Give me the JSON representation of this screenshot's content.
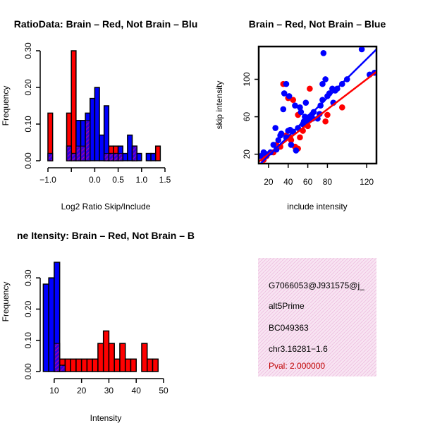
{
  "chart_data": [
    {
      "type": "bar",
      "subtype": "overlaid-histogram",
      "title": "RatioData: Brain – Red, Not Brain – Blu",
      "xlabel": "Log2 Ratio Skip/Include",
      "ylabel": "Frequency",
      "xlim": [
        -1.0,
        1.5
      ],
      "ylim": [
        0,
        0.3
      ],
      "xticks": [
        -1.0,
        -0.5,
        0.0,
        0.5,
        1.0,
        1.5
      ],
      "xtick_labels": [
        "−1.0",
        "",
        "0.0",
        "0.5",
        "1.0",
        "1.5"
      ],
      "yticks": [
        0,
        0.1,
        0.2,
        0.3
      ],
      "ytick_labels": [
        "0.00",
        "0.10",
        "0.20",
        "0.30"
      ],
      "bin_width": 0.1,
      "series": [
        {
          "name": "Brain",
          "color": "#ff0000",
          "bins": [
            [
              -1.0,
              0.13
            ],
            [
              -0.6,
              0.13
            ],
            [
              -0.5,
              0.3
            ],
            [
              -0.4,
              0.04
            ],
            [
              -0.3,
              0.04
            ],
            [
              -0.2,
              0.11
            ],
            [
              0.2,
              0.02
            ],
            [
              0.3,
              0.04
            ],
            [
              0.4,
              0.04
            ],
            [
              0.5,
              0.02
            ],
            [
              0.8,
              0.04
            ],
            [
              1.3,
              0.04
            ]
          ]
        },
        {
          "name": "Not Brain",
          "color": "#0000ff",
          "bins": [
            [
              -1.0,
              0.02
            ],
            [
              -0.6,
              0.04
            ],
            [
              -0.5,
              0.02
            ],
            [
              -0.4,
              0.11
            ],
            [
              -0.3,
              0.11
            ],
            [
              -0.2,
              0.13
            ],
            [
              -0.1,
              0.17
            ],
            [
              0.0,
              0.2
            ],
            [
              0.1,
              0.07
            ],
            [
              0.2,
              0.15
            ],
            [
              0.3,
              0.02
            ],
            [
              0.4,
              0.02
            ],
            [
              0.5,
              0.04
            ],
            [
              0.6,
              0.02
            ],
            [
              0.7,
              0.07
            ],
            [
              0.8,
              0.04
            ],
            [
              0.9,
              0.02
            ],
            [
              1.1,
              0.02
            ],
            [
              1.2,
              0.02
            ]
          ]
        }
      ]
    },
    {
      "type": "scatter",
      "title": "Brain – Red, Not Brain – Blue",
      "xlabel": "include intensity",
      "ylabel": "skip intensity",
      "xlim": [
        10,
        130
      ],
      "ylim": [
        10,
        135
      ],
      "xticks": [
        20,
        40,
        60,
        80,
        120
      ],
      "yticks": [
        20,
        60,
        100
      ],
      "series": [
        {
          "name": "Brain",
          "color": "#ff0000",
          "points": [
            [
              15,
              14
            ],
            [
              18,
              18
            ],
            [
              25,
              22
            ],
            [
              28,
              30
            ],
            [
              32,
              28
            ],
            [
              35,
              95
            ],
            [
              38,
              40
            ],
            [
              40,
              80
            ],
            [
              42,
              38
            ],
            [
              43,
              35
            ],
            [
              45,
              78
            ],
            [
              47,
              28
            ],
            [
              50,
              62
            ],
            [
              50,
              26
            ],
            [
              52,
              38
            ],
            [
              55,
              45
            ],
            [
              60,
              50
            ],
            [
              62,
              90
            ],
            [
              78,
              55
            ],
            [
              80,
              62
            ],
            [
              95,
              70
            ]
          ],
          "fit": {
            "x0": 10,
            "y0": 12,
            "x1": 130,
            "y1": 108
          }
        },
        {
          "name": "Not Brain",
          "color": "#0000ff",
          "points": [
            [
              12,
              18
            ],
            [
              15,
              22
            ],
            [
              18,
              20
            ],
            [
              22,
              22
            ],
            [
              25,
              30
            ],
            [
              27,
              48
            ],
            [
              28,
              25
            ],
            [
              30,
              35
            ],
            [
              32,
              40
            ],
            [
              33,
              42
            ],
            [
              35,
              68
            ],
            [
              36,
              85
            ],
            [
              38,
              38
            ],
            [
              38,
              95
            ],
            [
              40,
              45
            ],
            [
              41,
              82
            ],
            [
              42,
              46
            ],
            [
              43,
              30
            ],
            [
              45,
              44
            ],
            [
              47,
              72
            ],
            [
              48,
              24
            ],
            [
              50,
              48
            ],
            [
              52,
              70
            ],
            [
              53,
              65
            ],
            [
              55,
              52
            ],
            [
              56,
              55
            ],
            [
              57,
              60
            ],
            [
              58,
              75
            ],
            [
              60,
              55
            ],
            [
              62,
              60
            ],
            [
              64,
              62
            ],
            [
              65,
              58
            ],
            [
              66,
              65
            ],
            [
              70,
              58
            ],
            [
              72,
              63
            ],
            [
              73,
              72
            ],
            [
              75,
              78
            ],
            [
              75,
              95
            ],
            [
              76,
              128
            ],
            [
              78,
              100
            ],
            [
              80,
              82
            ],
            [
              82,
              85
            ],
            [
              85,
              90
            ],
            [
              86,
              75
            ],
            [
              88,
              88
            ],
            [
              90,
              90
            ],
            [
              95,
              95
            ],
            [
              100,
              100
            ],
            [
              115,
              132
            ],
            [
              123,
              105
            ],
            [
              128,
              107
            ]
          ],
          "fit": {
            "x0": 10,
            "y0": 8,
            "x1": 130,
            "y1": 132
          }
        }
      ]
    },
    {
      "type": "bar",
      "subtype": "overlaid-histogram",
      "title": "ne Itensity: Brain – Red, Not Brain – B",
      "xlabel": "Intensity",
      "ylabel": "Frequency",
      "xlim": [
        5,
        50
      ],
      "ylim": [
        0,
        0.35
      ],
      "xticks": [
        10,
        20,
        30,
        40,
        50
      ],
      "yticks": [
        0,
        0.1,
        0.2,
        0.3
      ],
      "ytick_labels": [
        "0.00",
        "0.10",
        "0.20",
        "0.30"
      ],
      "bin_width": 2,
      "series": [
        {
          "name": "Brain",
          "color": "#ff0000",
          "bins": [
            [
              10,
              0.09
            ],
            [
              12,
              0.04
            ],
            [
              14,
              0.04
            ],
            [
              16,
              0.04
            ],
            [
              18,
              0.04
            ],
            [
              20,
              0.04
            ],
            [
              22,
              0.04
            ],
            [
              24,
              0.04
            ],
            [
              26,
              0.09
            ],
            [
              28,
              0.13
            ],
            [
              30,
              0.09
            ],
            [
              32,
              0.04
            ],
            [
              34,
              0.09
            ],
            [
              36,
              0.04
            ],
            [
              38,
              0.04
            ],
            [
              42,
              0.09
            ],
            [
              44,
              0.04
            ],
            [
              46,
              0.04
            ]
          ]
        },
        {
          "name": "Not Brain",
          "color": "#0000ff",
          "bins": [
            [
              6,
              0.28
            ],
            [
              8,
              0.3
            ],
            [
              10,
              0.35
            ],
            [
              12,
              0.02
            ]
          ]
        }
      ]
    }
  ],
  "info_panel": {
    "lines": [
      "G7066053@J931575@j_",
      "alt5Prime",
      "BC049363",
      "chr3.16281−1.6"
    ],
    "pval": "Pval: 2.000000",
    "pval_color": "#c00000",
    "background": "#f6dcee"
  }
}
